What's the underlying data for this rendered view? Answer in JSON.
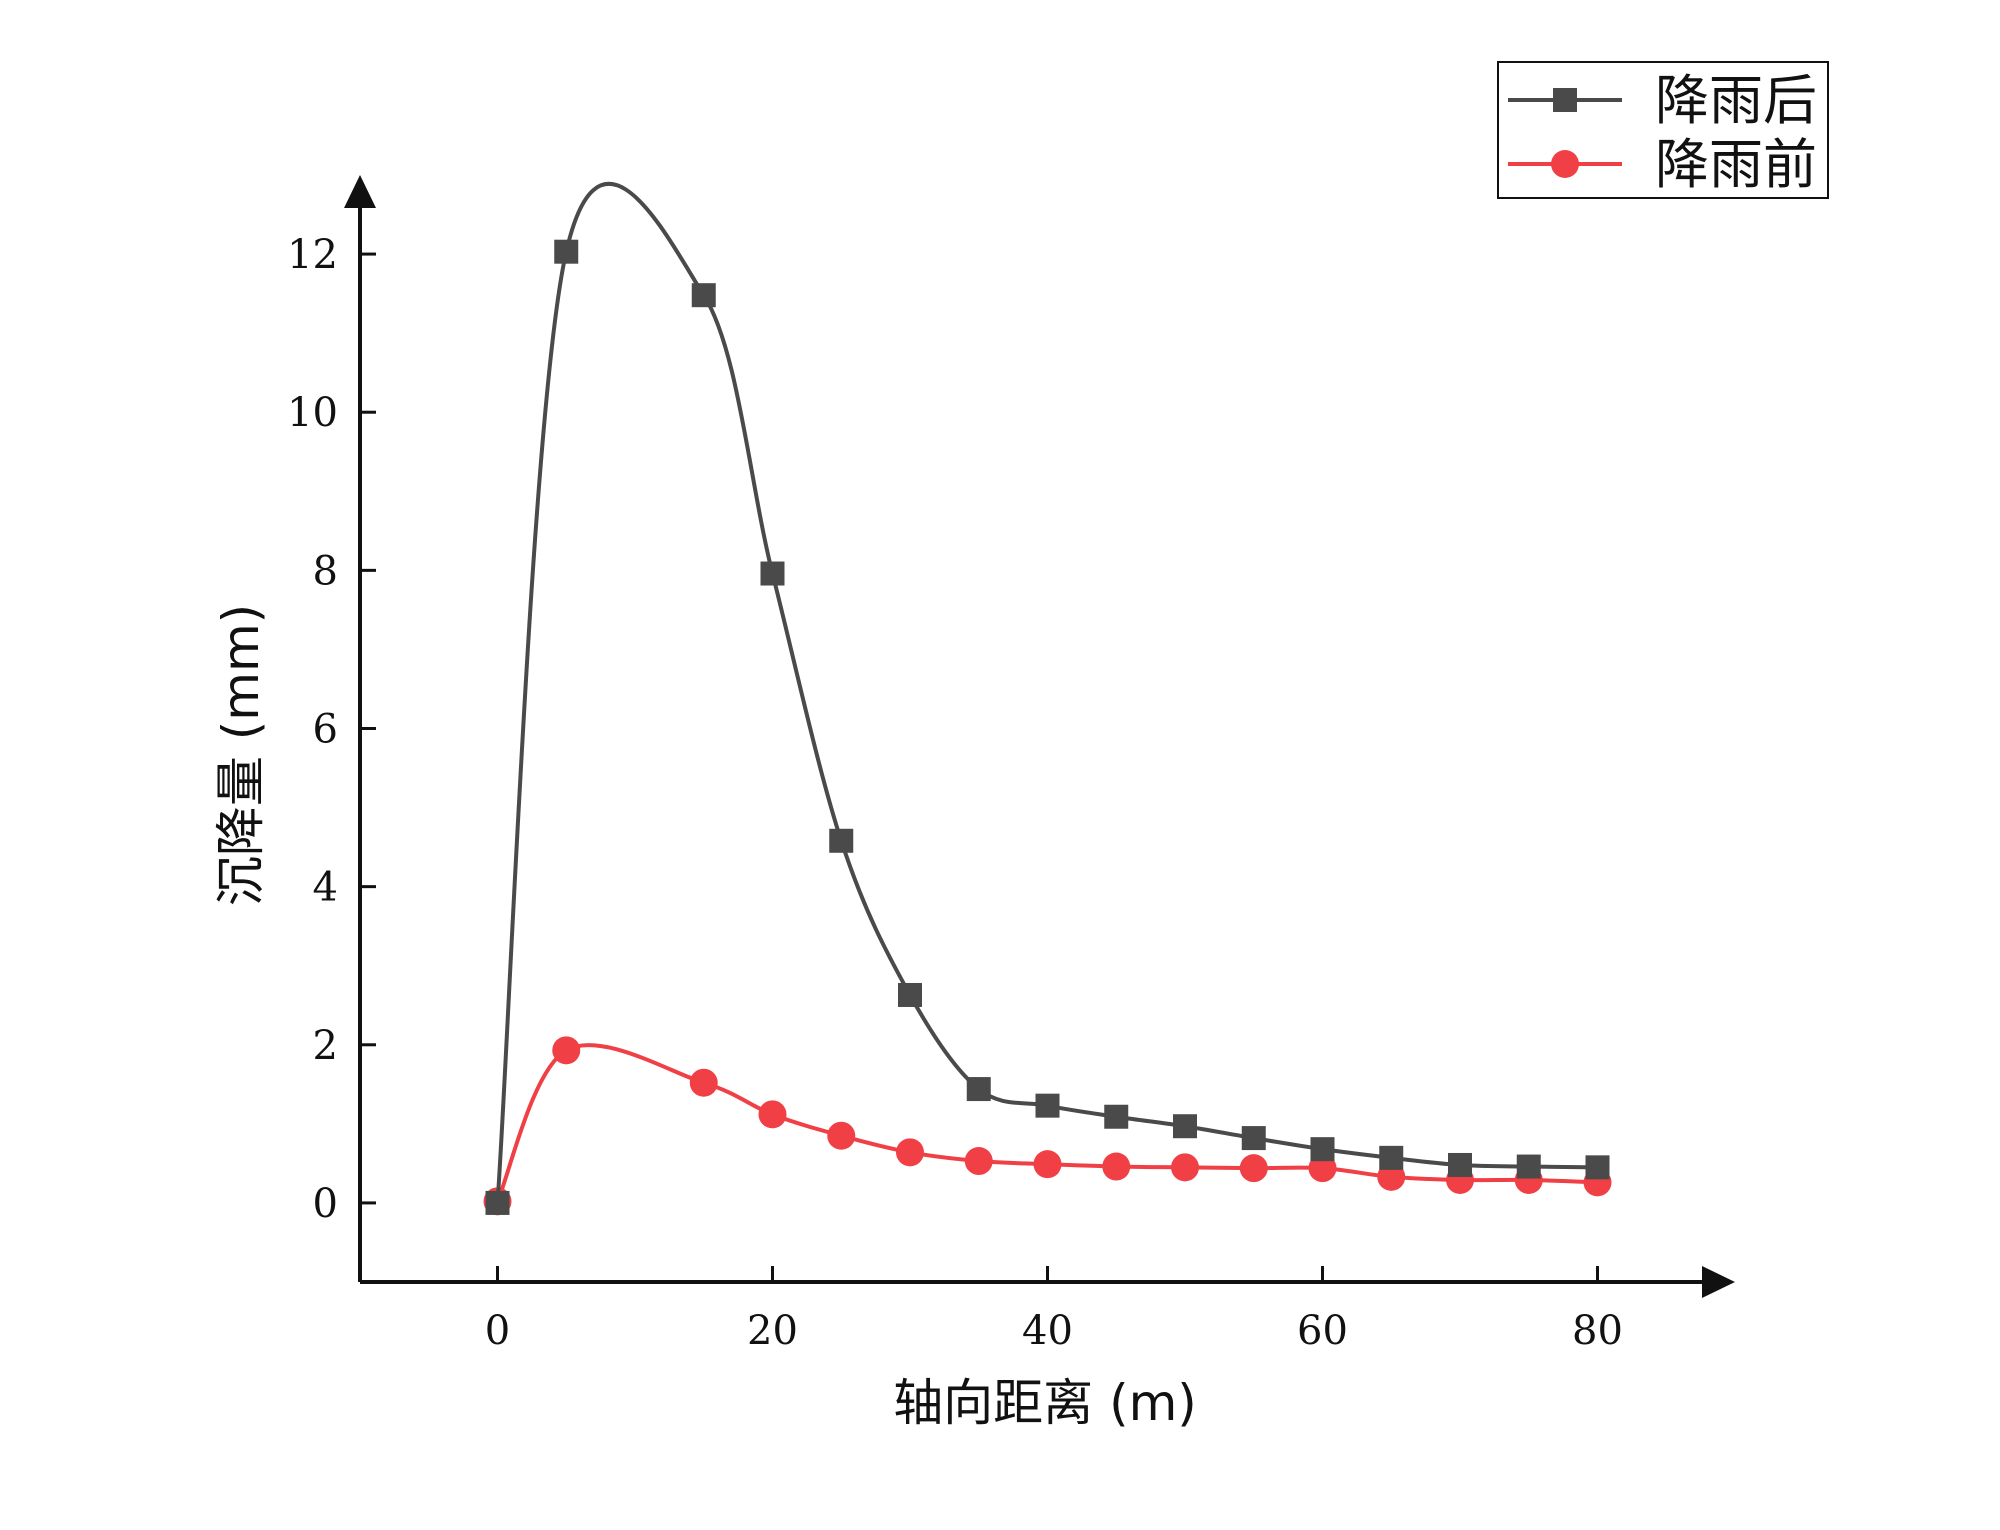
{
  "chart_data": {
    "type": "line",
    "title": "",
    "xlabel": "轴向距离 (m)",
    "ylabel": "沉降量 (mm)",
    "xlim": [
      -10,
      90
    ],
    "ylim": [
      -1,
      13
    ],
    "x_ticks": [
      0,
      20,
      40,
      60,
      80
    ],
    "y_ticks": [
      0,
      2,
      4,
      6,
      8,
      10,
      12
    ],
    "x_tick_labels": [
      "0",
      "20",
      "40",
      "60",
      "80"
    ],
    "y_tick_labels": [
      "0",
      "2",
      "4",
      "6",
      "8",
      "10",
      "12"
    ],
    "grid": false,
    "legend_position": "top-right",
    "series": [
      {
        "name": "降雨后",
        "marker": "square",
        "color": "#4a4a4a",
        "x": [
          0,
          5,
          15,
          20,
          25,
          30,
          35,
          40,
          45,
          50,
          55,
          60,
          65,
          70,
          75,
          80
        ],
        "y": [
          0.0,
          12.03,
          11.48,
          7.96,
          4.58,
          2.63,
          1.44,
          1.23,
          1.09,
          0.97,
          0.82,
          0.68,
          0.57,
          0.48,
          0.46,
          0.45
        ]
      },
      {
        "name": "降雨前",
        "marker": "circle",
        "color": "#f04046",
        "x": [
          0,
          5,
          15,
          20,
          25,
          30,
          35,
          40,
          45,
          50,
          55,
          60,
          65,
          70,
          75,
          80
        ],
        "y": [
          0.02,
          1.93,
          1.52,
          1.12,
          0.85,
          0.64,
          0.53,
          0.49,
          0.46,
          0.45,
          0.44,
          0.44,
          0.33,
          0.29,
          0.29,
          0.26
        ]
      }
    ]
  }
}
